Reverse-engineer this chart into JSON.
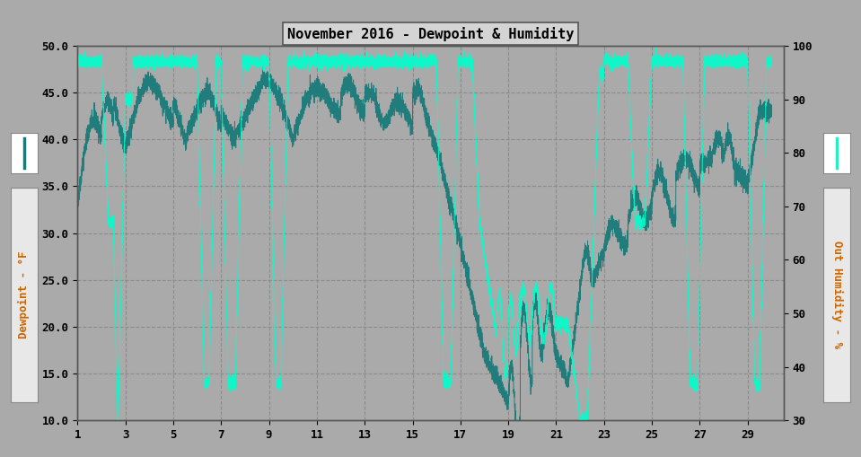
{
  "title": "November 2016 - Dewpoint & Humidity",
  "ylabel_left": "Dewpoint - °F",
  "ylabel_right": "Out Humidity - %",
  "ylim_left": [
    10.0,
    50.0
  ],
  "ylim_right": [
    30,
    100
  ],
  "yticks_left": [
    10.0,
    15.0,
    20.0,
    25.0,
    30.0,
    35.0,
    40.0,
    45.0,
    50.0
  ],
  "yticks_right": [
    30,
    40,
    50,
    60,
    70,
    80,
    90,
    100
  ],
  "xticks": [
    1,
    3,
    5,
    7,
    9,
    11,
    13,
    15,
    17,
    19,
    21,
    23,
    25,
    27,
    29
  ],
  "xlim": [
    1,
    30.5
  ],
  "background_color": "#aaaaaa",
  "plot_bg_color": "#aaaaaa",
  "dewpoint_color": "#1a7a7a",
  "humidity_color": "#00ffcc",
  "title_box_facecolor": "#d4d4d4",
  "title_box_edgecolor": "#555555",
  "axis_label_box_facecolor": "#e8e8e8",
  "axis_label_box_edgecolor": "#888888",
  "grid_color": "#888888",
  "title_fontsize": 11,
  "axis_label_fontsize": 9,
  "tick_fontsize": 9
}
